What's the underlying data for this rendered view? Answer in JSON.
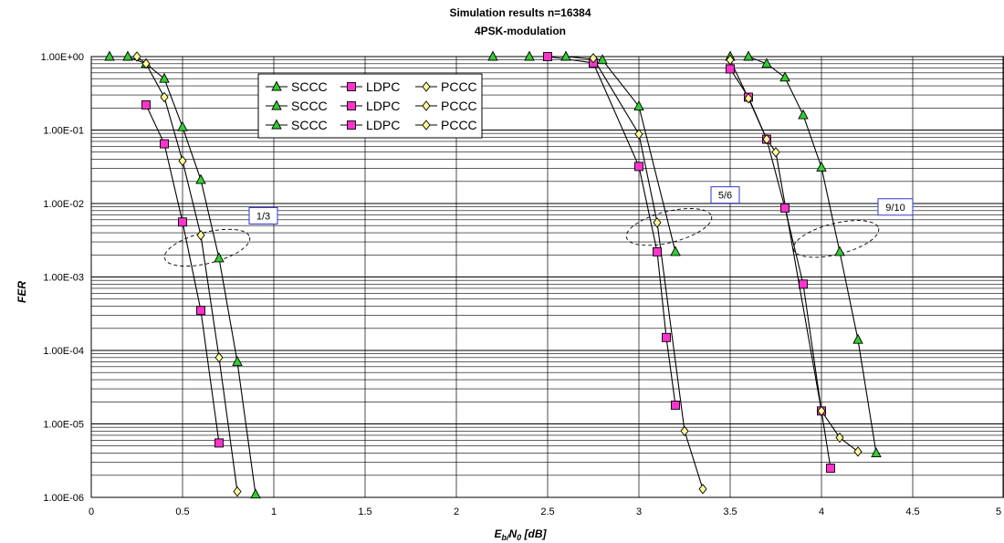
{
  "chart_data": {
    "type": "line",
    "title": "Simulation results n=16384",
    "subtitle": "4PSK-modulation",
    "xlabel_main": "E",
    "xlabel_sub1": "b/",
    "xlabel_mid": "N",
    "xlabel_sub2": "0",
    "xlabel_unit": " [dB]",
    "ylabel": "FER",
    "xlim": [
      0,
      5
    ],
    "ylim": [
      1e-06,
      1
    ],
    "y_scale": "log",
    "grid": "on",
    "legend_position": "top-left-center",
    "x_ticks": [
      "0",
      "0.5",
      "1",
      "1.5",
      "2",
      "2.5",
      "3",
      "3.5",
      "4",
      "4.5",
      "5"
    ],
    "y_ticks": [
      "1.00E+00",
      "1.00E-01",
      "1.00E-02",
      "1.00E-03",
      "1.00E-04",
      "1.00E-05",
      "1.00E-06"
    ],
    "legend": [
      [
        "SCCC",
        "LDPC",
        "PCCC"
      ],
      [
        "SCCC",
        "LDPC",
        "PCCC"
      ],
      [
        "SCCC",
        "LDPC",
        "PCCC"
      ]
    ],
    "annotations": [
      {
        "label": "1/3",
        "cx": 0.635,
        "cy": 0.0025
      },
      {
        "label": "5/6",
        "cx": 3.165,
        "cy": 0.0048
      },
      {
        "label": "9/10",
        "cx": 4.08,
        "cy": 0.0033
      }
    ],
    "colors": {
      "scc": "#33CC33",
      "ldpc": "#FF33CC",
      "pccc": "#FFFF99"
    },
    "series": [
      {
        "group": "1/3",
        "marker": "triangle",
        "color": "#33CC33",
        "x": [
          0.1,
          0.2,
          0.3,
          0.4,
          0.5,
          0.6,
          0.7,
          0.8,
          0.9
        ],
        "y": [
          1.0,
          1.0,
          0.8,
          0.5,
          0.11,
          0.021,
          0.0018,
          7e-05,
          1.1e-06
        ]
      },
      {
        "group": "1/3",
        "marker": "square",
        "color": "#FF33CC",
        "x": [
          0.3,
          0.4,
          0.5,
          0.6,
          0.7
        ],
        "y": [
          0.22,
          0.065,
          0.0056,
          0.00035,
          5.5e-06
        ]
      },
      {
        "group": "1/3",
        "marker": "diamond",
        "color": "#FFFF99",
        "x": [
          0.25,
          0.3,
          0.4,
          0.5,
          0.6,
          0.7,
          0.8
        ],
        "y": [
          1.0,
          0.8,
          0.28,
          0.038,
          0.0037,
          8e-05,
          1.2e-06
        ]
      },
      {
        "group": "5/6",
        "marker": "triangle",
        "color": "#33CC33",
        "x": [
          2.2,
          2.4,
          2.6,
          2.8,
          3.0,
          3.2
        ],
        "y": [
          1.0,
          1.0,
          1.0,
          0.9,
          0.21,
          0.0022
        ]
      },
      {
        "group": "5/6",
        "marker": "square",
        "color": "#FF33CC",
        "x": [
          2.5,
          2.75,
          3.0,
          3.1,
          3.15,
          3.2
        ],
        "y": [
          1.0,
          0.82,
          0.032,
          0.0022,
          0.00015,
          1.8e-05
        ]
      },
      {
        "group": "5/6",
        "marker": "diamond",
        "color": "#FFFF99",
        "x": [
          2.75,
          3.0,
          3.1,
          3.25,
          3.35
        ],
        "y": [
          0.95,
          0.088,
          0.0055,
          8e-06,
          1.3e-06
        ]
      },
      {
        "group": "9/10",
        "marker": "triangle",
        "color": "#33CC33",
        "x": [
          3.5,
          3.6,
          3.7,
          3.8,
          3.9,
          4.0,
          4.1,
          4.2,
          4.3
        ],
        "y": [
          1.0,
          1.0,
          0.8,
          0.52,
          0.16,
          0.031,
          0.0022,
          0.00014,
          4e-06
        ]
      },
      {
        "group": "9/10",
        "marker": "square",
        "color": "#FF33CC",
        "x": [
          3.5,
          3.6,
          3.7,
          3.8,
          3.9,
          4.0,
          4.05
        ],
        "y": [
          0.68,
          0.28,
          0.075,
          0.0087,
          0.0008,
          1.5e-05,
          2.5e-06
        ]
      },
      {
        "group": "9/10",
        "marker": "diamond",
        "color": "#FFFF99",
        "x": [
          3.5,
          3.6,
          3.7,
          3.75,
          4.0,
          4.1,
          4.2
        ],
        "y": [
          0.9,
          0.27,
          0.075,
          0.05,
          1.5e-05,
          6.5e-06,
          4.2e-06
        ]
      }
    ]
  }
}
